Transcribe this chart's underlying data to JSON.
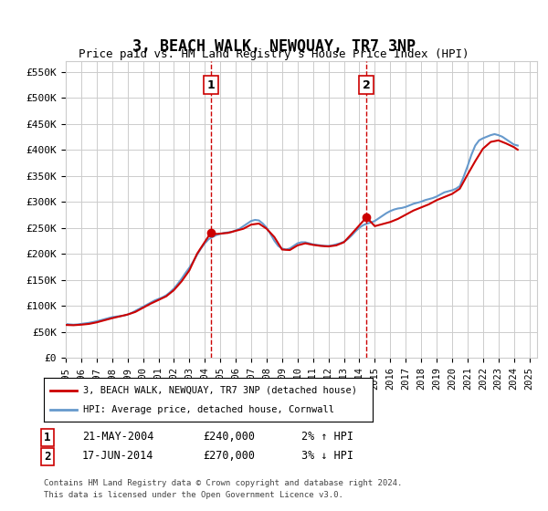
{
  "title": "3, BEACH WALK, NEWQUAY, TR7 3NP",
  "subtitle": "Price paid vs. HM Land Registry's House Price Index (HPI)",
  "ylabel_ticks": [
    "£0",
    "£50K",
    "£100K",
    "£150K",
    "£200K",
    "£250K",
    "£300K",
    "£350K",
    "£400K",
    "£450K",
    "£500K",
    "£550K"
  ],
  "ytick_values": [
    0,
    50000,
    100000,
    150000,
    200000,
    250000,
    300000,
    350000,
    400000,
    450000,
    500000,
    550000
  ],
  "ylim": [
    0,
    570000
  ],
  "xlim_start": 1995.0,
  "xlim_end": 2025.5,
  "legend_property": "3, BEACH WALK, NEWQUAY, TR7 3NP (detached house)",
  "legend_hpi": "HPI: Average price, detached house, Cornwall",
  "transaction1_label": "1",
  "transaction1_date": "21-MAY-2004",
  "transaction1_price": 240000,
  "transaction1_year": 2004.38,
  "transaction1_hpi_pct": "2%",
  "transaction1_hpi_dir": "↑",
  "transaction2_label": "2",
  "transaction2_date": "17-JUN-2014",
  "transaction2_price": 270000,
  "transaction2_year": 2014.46,
  "transaction2_hpi_pct": "3%",
  "transaction2_hpi_dir": "↓",
  "footnote1": "Contains HM Land Registry data © Crown copyright and database right 2024.",
  "footnote2": "This data is licensed under the Open Government Licence v3.0.",
  "property_color": "#cc0000",
  "hpi_color": "#6699cc",
  "dashed_color": "#cc0000",
  "background_color": "#ffffff",
  "grid_color": "#cccccc",
  "hpi_data_x": [
    1995,
    1995.25,
    1995.5,
    1995.75,
    1996,
    1996.25,
    1996.5,
    1996.75,
    1997,
    1997.25,
    1997.5,
    1997.75,
    1998,
    1998.25,
    1998.5,
    1998.75,
    1999,
    1999.25,
    1999.5,
    1999.75,
    2000,
    2000.25,
    2000.5,
    2000.75,
    2001,
    2001.25,
    2001.5,
    2001.75,
    2002,
    2002.25,
    2002.5,
    2002.75,
    2003,
    2003.25,
    2003.5,
    2003.75,
    2004,
    2004.25,
    2004.5,
    2004.75,
    2005,
    2005.25,
    2005.5,
    2005.75,
    2006,
    2006.25,
    2006.5,
    2006.75,
    2007,
    2007.25,
    2007.5,
    2007.75,
    2008,
    2008.25,
    2008.5,
    2008.75,
    2009,
    2009.25,
    2009.5,
    2009.75,
    2010,
    2010.25,
    2010.5,
    2010.75,
    2011,
    2011.25,
    2011.5,
    2011.75,
    2012,
    2012.25,
    2012.5,
    2012.75,
    2013,
    2013.25,
    2013.5,
    2013.75,
    2014,
    2014.25,
    2014.5,
    2014.75,
    2015,
    2015.25,
    2015.5,
    2015.75,
    2016,
    2016.25,
    2016.5,
    2016.75,
    2017,
    2017.25,
    2017.5,
    2017.75,
    2018,
    2018.25,
    2018.5,
    2018.75,
    2019,
    2019.25,
    2019.5,
    2019.75,
    2020,
    2020.25,
    2020.5,
    2020.75,
    2021,
    2021.25,
    2021.5,
    2021.75,
    2022,
    2022.25,
    2022.5,
    2022.75,
    2023,
    2023.25,
    2023.5,
    2023.75,
    2024,
    2024.25
  ],
  "hpi_data_y": [
    65000,
    64000,
    63500,
    64000,
    65000,
    66000,
    67000,
    68500,
    70000,
    72000,
    74000,
    76000,
    78000,
    79000,
    80000,
    81000,
    83000,
    86000,
    90000,
    94000,
    98000,
    102000,
    106000,
    110000,
    113000,
    116000,
    120000,
    126000,
    133000,
    142000,
    152000,
    163000,
    173000,
    185000,
    198000,
    210000,
    220000,
    228000,
    232000,
    236000,
    238000,
    240000,
    241000,
    242000,
    245000,
    248000,
    253000,
    258000,
    263000,
    265000,
    264000,
    258000,
    250000,
    238000,
    225000,
    215000,
    210000,
    208000,
    210000,
    215000,
    220000,
    222000,
    222000,
    220000,
    218000,
    217000,
    216000,
    215000,
    215000,
    216000,
    218000,
    220000,
    223000,
    228000,
    235000,
    243000,
    250000,
    255000,
    258000,
    260000,
    263000,
    268000,
    273000,
    278000,
    282000,
    285000,
    287000,
    288000,
    290000,
    293000,
    296000,
    298000,
    300000,
    303000,
    305000,
    307000,
    310000,
    314000,
    318000,
    320000,
    322000,
    325000,
    330000,
    348000,
    368000,
    390000,
    408000,
    418000,
    422000,
    425000,
    428000,
    430000,
    428000,
    425000,
    420000,
    415000,
    410000,
    408000
  ],
  "property_data_x": [
    1995.0,
    1995.5,
    1996.0,
    1996.5,
    1997.0,
    1997.5,
    1998.0,
    1998.5,
    1999.0,
    1999.5,
    2000.0,
    2000.5,
    2001.0,
    2001.5,
    2002.0,
    2002.5,
    2003.0,
    2003.5,
    2004.38,
    2004.75,
    2005.5,
    2006.5,
    2007.0,
    2007.5,
    2008.0,
    2008.5,
    2009.0,
    2009.5,
    2010.0,
    2010.5,
    2011.0,
    2011.5,
    2012.0,
    2012.5,
    2013.0,
    2013.5,
    2014.46,
    2015.0,
    2015.5,
    2016.0,
    2016.5,
    2017.0,
    2017.5,
    2018.0,
    2018.5,
    2019.0,
    2019.5,
    2020.0,
    2020.5,
    2021.0,
    2021.5,
    2022.0,
    2022.5,
    2023.0,
    2023.5,
    2024.0,
    2024.25
  ],
  "property_data_y": [
    63000,
    62500,
    63500,
    65000,
    68000,
    72000,
    76000,
    79500,
    83000,
    88000,
    96000,
    104000,
    111000,
    118000,
    130000,
    147000,
    168000,
    200000,
    240000,
    238000,
    240000,
    248000,
    256000,
    258000,
    248000,
    232000,
    208000,
    207000,
    216000,
    220000,
    217000,
    215000,
    214000,
    216000,
    222000,
    238000,
    270000,
    253000,
    257000,
    261000,
    267000,
    275000,
    283000,
    289000,
    295000,
    303000,
    309000,
    315000,
    325000,
    352000,
    378000,
    402000,
    415000,
    418000,
    412000,
    405000,
    400000
  ]
}
